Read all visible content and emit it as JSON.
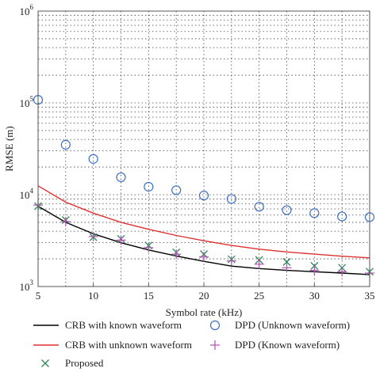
{
  "chart_data": {
    "type": "scatter",
    "title": "",
    "xlabel": "Symbol rate (kHz)",
    "ylabel": "RMSE (m)",
    "xlim": [
      5,
      35
    ],
    "ylim": [
      1000,
      1000000
    ],
    "yscale": "log",
    "grid": true,
    "x_ticks": [
      5,
      10,
      15,
      20,
      25,
      30,
      35
    ],
    "y_ticks": [
      {
        "base": "10",
        "exp": "3",
        "value": 1000
      },
      {
        "base": "10",
        "exp": "4",
        "value": 10000
      },
      {
        "base": "10",
        "exp": "5",
        "value": 100000
      },
      {
        "base": "10",
        "exp": "6",
        "value": 1000000
      }
    ],
    "legend_position": "bottom",
    "series": [
      {
        "name": "CRB with known waveform",
        "style": "line",
        "color": "#000000",
        "x": [
          5,
          7.5,
          10,
          12.5,
          15,
          17.5,
          20,
          22.5,
          25,
          27.5,
          30,
          32.5,
          35
        ],
        "values": [
          7500,
          5000,
          3750,
          3000,
          2500,
          2150,
          1880,
          1670,
          1570,
          1500,
          1450,
          1400,
          1350
        ]
      },
      {
        "name": "CRB with unknown waveform",
        "style": "line",
        "color": "#e03030",
        "x": [
          5,
          7.5,
          10,
          12.5,
          15,
          17.5,
          20,
          22.5,
          25,
          27.5,
          30,
          32.5,
          35
        ],
        "values": [
          12500,
          8300,
          6300,
          5000,
          4200,
          3600,
          3150,
          2800,
          2550,
          2380,
          2250,
          2140,
          2050
        ]
      },
      {
        "name": "Proposed",
        "style": "marker-x",
        "color": "#2e8b57",
        "x": [
          5,
          7.5,
          10,
          12.5,
          15,
          17.5,
          20,
          22.5,
          25,
          27.5,
          30,
          32.5,
          35
        ],
        "values": [
          7500,
          5300,
          3450,
          3300,
          2800,
          2350,
          2250,
          1980,
          1950,
          1850,
          1680,
          1600,
          1450
        ]
      },
      {
        "name": "DPD (Unknown waveform)",
        "style": "marker-circle",
        "color": "#3a6fc4",
        "x": [
          5,
          7.5,
          10,
          12.5,
          15,
          17.5,
          20,
          22.5,
          25,
          27.5,
          30,
          32.5,
          35
        ],
        "values": [
          108000,
          35000,
          24500,
          15500,
          12200,
          11200,
          9800,
          9000,
          7400,
          6800,
          6300,
          5800,
          5700
        ]
      },
      {
        "name": "DPD (Known waveform)",
        "style": "marker-plus",
        "color": "#b050b0",
        "x": [
          5,
          7.5,
          10,
          12.5,
          15,
          17.5,
          20,
          22.5,
          25,
          27.5,
          30,
          32.5,
          35
        ],
        "values": [
          7700,
          5100,
          3500,
          3200,
          2650,
          2250,
          2100,
          1900,
          1750,
          1600,
          1500,
          1450,
          1400
        ]
      }
    ]
  }
}
